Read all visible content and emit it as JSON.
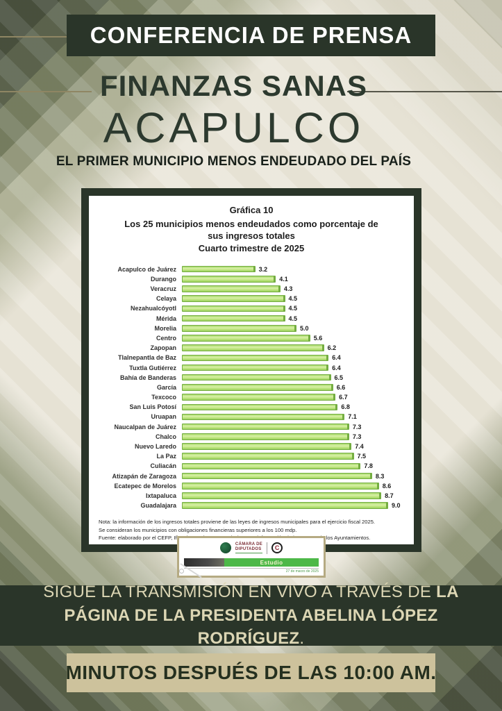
{
  "poster": {
    "banner": "CONFERENCIA DE PRENSA",
    "headline": "FINANZAS SANAS",
    "city": "ACAPULCO",
    "tagline": "EL PRIMER MUNICIPIO MENOS ENDEUDADO DEL PAÍS",
    "transmission": {
      "prefix": "SIGUE LA TRANSMISIÓN EN VIVO A TRAVÉS DE ",
      "bold": "LA PÁGINA DE LA PRESIDENTA ABELINA LÓPEZ RODRÍGUEZ",
      "suffix": "."
    },
    "time_banner": "MINUTOS DESPUÉS DE LAS 10:00 AM.",
    "colors": {
      "dark_green": "#2a3529",
      "cream_text": "#dcd6b4",
      "beige_banner": "#cdc29c",
      "headline_green": "#2c392e",
      "bar_fill": "#b5e07a",
      "bar_border": "#74ad41",
      "estudio_green": "#4db848",
      "logo_maroon": "#7b2d35"
    }
  },
  "chart_data": {
    "type": "bar",
    "orientation": "horizontal",
    "title": "Gráfica 10",
    "subtitle": "Los 25 municipios menos endeudados como porcentaje de sus ingresos totales",
    "period": "Cuarto trimestre de 2025",
    "xlabel": "",
    "ylabel": "",
    "xlim": [
      0,
      9.6
    ],
    "grid": false,
    "legend": false,
    "value_labels": true,
    "categories": [
      "Acapulco de Juárez",
      "Durango",
      "Veracruz",
      "Celaya",
      "Nezahualcóyotl",
      "Mérida",
      "Morelia",
      "Centro",
      "Zapopan",
      "Tlalnepantla de Baz",
      "Tuxtla Gutiérrez",
      "Bahía de Banderas",
      "García",
      "Texcoco",
      "San Luis Potosí",
      "Uruapan",
      "Naucalpan de Juárez",
      "Chalco",
      "Nuevo Laredo",
      "La Paz",
      "Culiacán",
      "Atizapán de Zaragoza",
      "Ecatepec de Morelos",
      "Ixtapaluca",
      "Guadalajara"
    ],
    "values": [
      3.2,
      4.1,
      4.3,
      4.5,
      4.5,
      4.5,
      5.0,
      5.6,
      6.2,
      6.4,
      6.4,
      6.5,
      6.6,
      6.7,
      6.8,
      7.1,
      7.3,
      7.3,
      7.4,
      7.5,
      7.8,
      8.3,
      8.6,
      8.7,
      9.0
    ],
    "notes": [
      "Nota: la información de los ingresos totales proviene de las leyes de ingresos municipales para el ejercicio fiscal 2025.",
      "Se consideran los municipios con obligaciones financieras superiores a los 100 mdp.",
      "Fuente:  elaborado por el CEFP, Ifigenia Martínez y Hernández, con información de la SHCP y de los Ayuntamientos."
    ]
  },
  "footer_card": {
    "camara_line1": "CÁMARA DE",
    "camara_line2": "DIPUTADOS",
    "cefp_letter": "C",
    "estudio_label": "Estudio",
    "date": "27 de marzo de 2025"
  }
}
